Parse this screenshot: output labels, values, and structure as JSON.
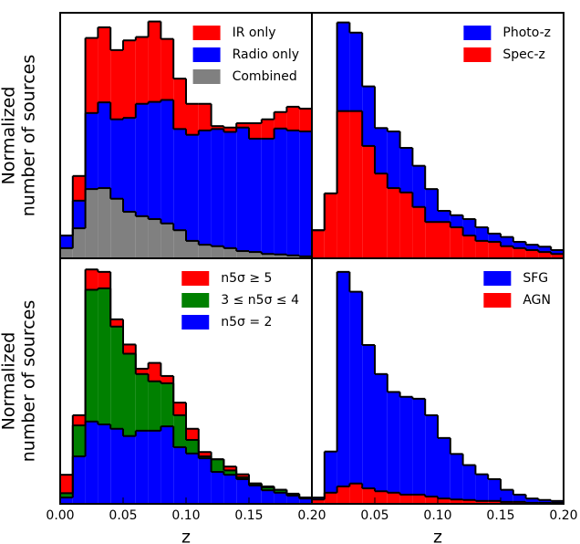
{
  "chart_data": [
    {
      "type": "histogram",
      "legend": "upper right",
      "ylabel": [
        "Normalized",
        "number of sources"
      ],
      "bins": [
        0,
        0.01,
        0.02,
        0.03,
        0.04,
        0.05,
        0.06,
        0.07,
        0.08,
        0.09,
        0.1,
        0.11,
        0.12,
        0.13,
        0.14,
        0.15,
        0.16,
        0.17,
        0.18,
        0.19,
        0.2
      ],
      "xlim": [
        0,
        0.2
      ],
      "ylim": [
        0,
        5.07
      ],
      "series": [
        {
          "name": "IR only",
          "color": "#ff0000",
          "values": [
            0,
            0.51,
            1.55,
            1.55,
            1.43,
            1.6,
            1.38,
            1.66,
            1.26,
            1.04,
            0.64,
            0.55,
            0.06,
            0.09,
            0.09,
            0.32,
            0.4,
            0.34,
            0.49,
            0.47
          ]
        },
        {
          "name": "Radio only",
          "color": "#0000ff",
          "values": [
            0.26,
            0.57,
            1.57,
            1.77,
            1.64,
            1.94,
            2.32,
            2.42,
            2.55,
            2.09,
            2.19,
            2.36,
            2.42,
            2.4,
            2.55,
            2.34,
            2.38,
            2.6,
            2.58,
            2.58
          ]
        },
        {
          "name": "Combined",
          "color": "#808080",
          "values": [
            0.21,
            0.62,
            1.43,
            1.45,
            1.23,
            0.96,
            0.87,
            0.81,
            0.72,
            0.58,
            0.36,
            0.28,
            0.25,
            0.21,
            0.15,
            0.13,
            0.09,
            0.08,
            0.06,
            0.04
          ]
        }
      ]
    },
    {
      "type": "histogram",
      "legend": "upper right",
      "bins": [
        0,
        0.01,
        0.02,
        0.03,
        0.04,
        0.05,
        0.06,
        0.07,
        0.08,
        0.09,
        0.1,
        0.11,
        0.12,
        0.13,
        0.14,
        0.15,
        0.16,
        0.17,
        0.18,
        0.19,
        0.2
      ],
      "xlim": [
        0,
        0.2
      ],
      "ylim": [
        0,
        5.07
      ],
      "series": [
        {
          "name": "Photo-z",
          "color": "#0000ff",
          "values": [
            0,
            0,
            1.83,
            1.62,
            1.23,
            0.94,
            1.17,
            0.92,
            0.85,
            0.68,
            0.23,
            0.25,
            0.34,
            0.28,
            0.17,
            0.19,
            0.13,
            0.11,
            0.11,
            0.08
          ]
        },
        {
          "name": "Spec-z",
          "color": "#ff0000",
          "values": [
            0.58,
            1.34,
            3.04,
            3.04,
            2.32,
            1.75,
            1.45,
            1.36,
            1.06,
            0.75,
            0.75,
            0.64,
            0.47,
            0.36,
            0.34,
            0.25,
            0.21,
            0.17,
            0.13,
            0.09
          ]
        }
      ]
    },
    {
      "type": "histogram",
      "legend": "upper right",
      "ylabel": [
        "Normalized",
        "number of sources"
      ],
      "xlabel": "z",
      "bins": [
        0,
        0.01,
        0.02,
        0.03,
        0.04,
        0.05,
        0.06,
        0.07,
        0.08,
        0.09,
        0.1,
        0.11,
        0.12,
        0.13,
        0.14,
        0.15,
        0.16,
        0.17,
        0.18,
        0.19,
        0.2
      ],
      "xlim": [
        0,
        0.2
      ],
      "ylim": [
        0,
        5.07
      ],
      "xticks": [
        {
          "value": 0,
          "label": "0.00"
        },
        {
          "value": 0.05,
          "label": "0.05"
        },
        {
          "value": 0.1,
          "label": "0.10"
        },
        {
          "value": 0.15,
          "label": "0.15"
        },
        {
          "value": 0.2,
          "label": "0.20"
        }
      ],
      "series": [
        {
          "name": "n5σ ≥ 5",
          "color": "#ff0000",
          "values": [
            0.38,
            0.21,
            0.42,
            0.34,
            0.15,
            0.19,
            0.11,
            0.38,
            0.15,
            0.26,
            0.23,
            0.09,
            0,
            0.08,
            0.06,
            0,
            0.02,
            0,
            0.02,
            0
          ]
        },
        {
          "name": "3 ≤ n5σ ≤ 4",
          "color": "#008000",
          "values": [
            0.09,
            0.64,
            2.72,
            2.81,
            2.11,
            1.7,
            1.17,
            1.02,
            0.89,
            0.66,
            0.28,
            0.04,
            0.26,
            0.09,
            0.04,
            0.04,
            0.06,
            0.06,
            0.02,
            0.02
          ]
        },
        {
          "name": "n5σ = 2",
          "color": "#0000ff",
          "values": [
            0.13,
            0.98,
            1.7,
            1.64,
            1.55,
            1.4,
            1.51,
            1.51,
            1.6,
            1.17,
            1.04,
            0.94,
            0.66,
            0.6,
            0.51,
            0.38,
            0.28,
            0.23,
            0.17,
            0.11
          ]
        }
      ]
    },
    {
      "type": "histogram",
      "legend": "upper right",
      "xlabel": "z",
      "bins": [
        0,
        0.01,
        0.02,
        0.03,
        0.04,
        0.05,
        0.06,
        0.07,
        0.08,
        0.09,
        0.1,
        0.11,
        0.12,
        0.13,
        0.14,
        0.15,
        0.16,
        0.17,
        0.18,
        0.19,
        0.2
      ],
      "xlim": [
        0,
        0.2
      ],
      "ylim": [
        0,
        5.07
      ],
      "xticks": [
        {
          "value": 0.05,
          "label": "0.05"
        },
        {
          "value": 0.1,
          "label": "0.10"
        },
        {
          "value": 0.15,
          "label": "0.15"
        },
        {
          "value": 0.2,
          "label": "0.20"
        }
      ],
      "series": [
        {
          "name": "SFG",
          "color": "#0000ff",
          "values": [
            0.04,
            0.85,
            4.43,
            3.96,
            2.96,
            2.42,
            2.08,
            2.02,
            1.98,
            1.68,
            1.25,
            0.94,
            0.72,
            0.55,
            0.45,
            0.25,
            0.15,
            0.09,
            0.06,
            0.04
          ]
        },
        {
          "name": "AGN",
          "color": "#ff0000",
          "values": [
            0.09,
            0.23,
            0.36,
            0.42,
            0.32,
            0.26,
            0.23,
            0.19,
            0.19,
            0.15,
            0.11,
            0.09,
            0.08,
            0.06,
            0.06,
            0.04,
            0.04,
            0.02,
            0.02,
            0.02
          ]
        }
      ]
    }
  ]
}
